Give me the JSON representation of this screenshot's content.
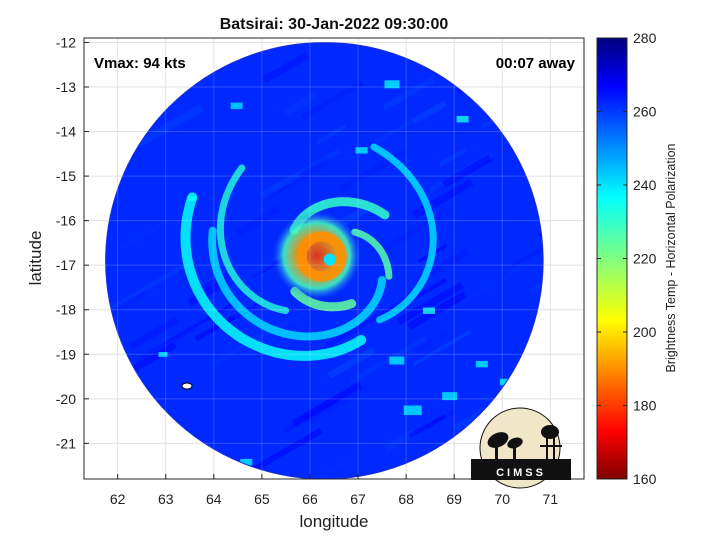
{
  "chart_data": {
    "type": "heatmap",
    "title": "Batsirai: 30-Jan-2022 09:30:00",
    "xlabel": "longitude",
    "ylabel": "latitude",
    "xlim": [
      61.3,
      71.7
    ],
    "ylim": [
      -21.8,
      -11.9
    ],
    "xticks": [
      62,
      63,
      64,
      65,
      66,
      67,
      68,
      69,
      70,
      71
    ],
    "yticks": [
      -12,
      -13,
      -14,
      -15,
      -16,
      -17,
      -18,
      -19,
      -20,
      -21
    ],
    "grid": true,
    "annotations": {
      "vmax": "Vmax: 94 kts",
      "time_offset": "00:07 away"
    },
    "colorbar": {
      "label": "Brightness Temp - Horizontal Polarization",
      "range": [
        160,
        280
      ],
      "ticks": [
        160,
        180,
        200,
        220,
        240,
        260,
        280
      ],
      "colormap": "jet"
    },
    "storm_center": {
      "lon": 66.35,
      "lat": -16.85
    },
    "swath": {
      "center_lon": 66.3,
      "center_lat": -16.9,
      "radius_lon": 4.55,
      "radius_lat": 4.9
    },
    "eyewall_min_temp": 180,
    "background_temp": 262,
    "logo": "CIMSS"
  }
}
